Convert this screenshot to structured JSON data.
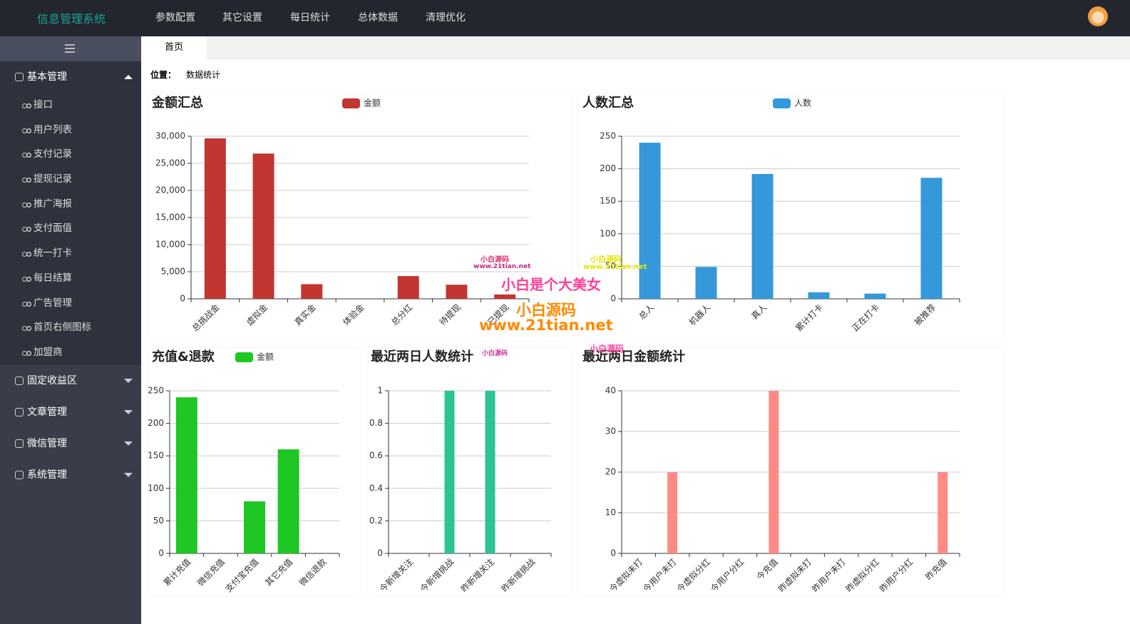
{
  "header": {
    "title": "信息管理系统",
    "nav": [
      "参数配置",
      "其它设置",
      "每日统计",
      "总体数据",
      "清理优化"
    ]
  },
  "sidebar": {
    "groups": [
      {
        "label": "基本管理",
        "items": [
          "接口",
          "用户列表",
          "支付记录",
          "提现记录",
          "推广海报",
          "支付面值",
          "统一打卡",
          "每日结算",
          "广告管理",
          "首页右侧图标",
          "加盟商"
        ]
      },
      {
        "label": "固定收益区"
      },
      {
        "label": "文章管理"
      },
      {
        "label": "微信管理"
      },
      {
        "label": "系统管理"
      }
    ]
  },
  "tab": "首页",
  "breadcrumb": {
    "label": "位置：",
    "value": "数据统计"
  },
  "watermarks": [
    "小白源码",
    "www.21tian.net",
    "小白是个大美女",
    "小白源码",
    "www.21tian.net",
    "小白源码",
    "www.21tian.net",
    "小白源码",
    "小白源码"
  ],
  "chart_data": [
    {
      "type": "bar",
      "title": "金额汇总",
      "categories": [
        "总挑战金",
        "虚拟金",
        "真实金",
        "体验金",
        "总分红",
        "待提现",
        "已提现"
      ],
      "series": [
        {
          "name": "金额",
          "color": "#c23531",
          "values": [
            29600,
            26800,
            2700,
            0,
            4200,
            2600,
            800
          ]
        }
      ],
      "ylim": [
        0,
        30000
      ],
      "yticks": [
        0,
        {
          "value": 5000,
          "label": "5,000"
        },
        {
          "value": 10000,
          "label": "10,000"
        },
        {
          "value": 15000,
          "label": "15,000"
        },
        {
          "value": 20000,
          "label": "20,000"
        },
        {
          "value": 25000,
          "label": "25,000"
        },
        {
          "value": 30000,
          "label": "30,000"
        }
      ],
      "grid": true
    },
    {
      "type": "bar",
      "title": "人数汇总",
      "categories": [
        "总人",
        "机器人",
        "真人",
        "累计打卡",
        "正在打卡",
        "被推荐"
      ],
      "series": [
        {
          "name": "人数",
          "color": "#3498db",
          "values": [
            240,
            49,
            192,
            10,
            8,
            186
          ]
        }
      ],
      "ylim": [
        0,
        250
      ],
      "yticks": [
        0,
        50,
        100,
        150,
        200,
        250
      ],
      "grid": true
    },
    {
      "type": "bar",
      "title": "充值&退款",
      "categories": [
        "累计充值",
        "微信充值",
        "支付宝充值",
        "其它充值",
        "微信退款"
      ],
      "series": [
        {
          "name": "金额",
          "color": "#1ec723",
          "values": [
            240,
            0,
            80,
            160,
            0
          ]
        }
      ],
      "ylim": [
        0,
        250
      ],
      "yticks": [
        0,
        50,
        100,
        150,
        200,
        250
      ],
      "grid": true
    },
    {
      "type": "bar",
      "title": "最近两日人数统计",
      "categories": [
        "今新增关注",
        "今新增挑战",
        "昨新增关注",
        "昨新增挑战"
      ],
      "series": [
        {
          "color": "#2ec394",
          "values": [
            0,
            1,
            1,
            0
          ]
        }
      ],
      "ylim": [
        0,
        1
      ],
      "yticks": [
        0,
        0.2,
        0.4,
        0.6,
        0.8,
        1
      ],
      "grid": true
    },
    {
      "type": "bar",
      "title": "最近两日金额统计",
      "categories": [
        "今虚拟未打",
        "今用户未打",
        "今虚拟分红",
        "今用户分红",
        "今充值",
        "昨虚拟未打",
        "昨用户未打",
        "昨虚拟分红",
        "昨用户分红",
        "昨充值"
      ],
      "series": [
        {
          "color": "#ff8a84",
          "values": [
            0,
            20,
            0,
            0,
            40,
            0,
            0,
            0,
            0,
            20
          ]
        }
      ],
      "ylim": [
        0,
        40
      ],
      "yticks": [
        0,
        10,
        20,
        30,
        40
      ],
      "grid": true
    }
  ]
}
